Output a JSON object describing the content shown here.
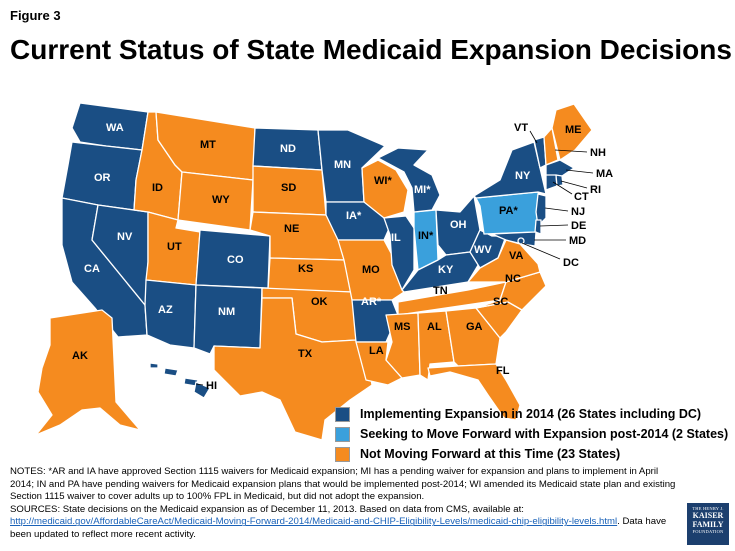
{
  "figure_label": "Figure 3",
  "title": "Current Status of State Medicaid Expansion Decisions",
  "colors": {
    "implementing": "#1a4e84",
    "seeking": "#3aa0dc",
    "not_moving": "#f58b1f"
  },
  "legend": [
    {
      "status": "implementing",
      "label": "Implementing Expansion in 2014 (26 States including DC)"
    },
    {
      "status": "seeking",
      "label": "Seeking to Move Forward with Expansion post-2014 (2 States)"
    },
    {
      "status": "not_moving",
      "label": "Not Moving Forward at this Time (23 States)"
    }
  ],
  "states": {
    "WA": {
      "label": "WA",
      "status": "implementing"
    },
    "OR": {
      "label": "OR",
      "status": "implementing"
    },
    "CA": {
      "label": "CA",
      "status": "implementing"
    },
    "NV": {
      "label": "NV",
      "status": "implementing"
    },
    "ID": {
      "label": "ID",
      "status": "not_moving"
    },
    "MT": {
      "label": "MT",
      "status": "not_moving"
    },
    "WY": {
      "label": "WY",
      "status": "not_moving"
    },
    "UT": {
      "label": "UT",
      "status": "not_moving"
    },
    "AZ": {
      "label": "AZ",
      "status": "implementing"
    },
    "CO": {
      "label": "CO",
      "status": "implementing"
    },
    "NM": {
      "label": "NM",
      "status": "implementing"
    },
    "ND": {
      "label": "ND",
      "status": "implementing"
    },
    "SD": {
      "label": "SD",
      "status": "not_moving"
    },
    "NE": {
      "label": "NE",
      "status": "not_moving"
    },
    "KS": {
      "label": "KS",
      "status": "not_moving"
    },
    "OK": {
      "label": "OK",
      "status": "not_moving"
    },
    "TX": {
      "label": "TX",
      "status": "not_moving"
    },
    "MN": {
      "label": "MN",
      "status": "implementing"
    },
    "IA": {
      "label": "IA*",
      "status": "implementing"
    },
    "MO": {
      "label": "MO",
      "status": "not_moving"
    },
    "AR": {
      "label": "AR*",
      "status": "implementing"
    },
    "LA": {
      "label": "LA",
      "status": "not_moving"
    },
    "WI": {
      "label": "WI*",
      "status": "not_moving"
    },
    "IL": {
      "label": "IL",
      "status": "implementing"
    },
    "MI": {
      "label": "MI*",
      "status": "implementing"
    },
    "IN": {
      "label": "IN*",
      "status": "seeking"
    },
    "OH": {
      "label": "OH",
      "status": "implementing"
    },
    "KY": {
      "label": "KY",
      "status": "implementing"
    },
    "TN": {
      "label": "TN",
      "status": "not_moving"
    },
    "MS": {
      "label": "MS",
      "status": "not_moving"
    },
    "AL": {
      "label": "AL",
      "status": "not_moving"
    },
    "GA": {
      "label": "GA",
      "status": "not_moving"
    },
    "FL": {
      "label": "FL",
      "status": "not_moving"
    },
    "SC": {
      "label": "SC",
      "status": "not_moving"
    },
    "NC": {
      "label": "NC",
      "status": "not_moving"
    },
    "VA": {
      "label": "VA",
      "status": "not_moving"
    },
    "WV": {
      "label": "WV",
      "status": "implementing"
    },
    "PA": {
      "label": "PA*",
      "status": "seeking"
    },
    "NY": {
      "label": "NY",
      "status": "implementing"
    },
    "VT": {
      "label": "VT",
      "status": "implementing"
    },
    "NH": {
      "label": "NH",
      "status": "not_moving"
    },
    "ME": {
      "label": "ME",
      "status": "not_moving"
    },
    "MA": {
      "label": "MA",
      "status": "implementing"
    },
    "RI": {
      "label": "RI",
      "status": "implementing"
    },
    "CT": {
      "label": "CT",
      "status": "implementing"
    },
    "NJ": {
      "label": "NJ",
      "status": "implementing"
    },
    "DE": {
      "label": "DE",
      "status": "implementing"
    },
    "MD": {
      "label": "MD",
      "status": "implementing"
    },
    "DC": {
      "label": "DC",
      "status": "implementing"
    },
    "AK": {
      "label": "AK",
      "status": "not_moving"
    },
    "HI": {
      "label": "HI",
      "status": "implementing"
    }
  },
  "notes": {
    "line1": "NOTES: *AR and IA have approved Section 1115 waivers for Medicaid expansion; MI has a pending waiver for expansion and plans to implement in April 2014; IN and PA have pending waivers for Medicaid expansion plans that would be implemented post-2014; WI amended its Medicaid state plan and existing Section 1115 waiver to cover adults up to 100% FPL in Medicaid, but did not adopt the expansion.",
    "sources_prefix": "SOURCES: State decisions on the Medicaid expansion as of December 11, 2013. Based on data from CMS, available at:",
    "sources_link": "http://medicaid.gov/AffordableCareAct/Medicaid-Moving-Forward-2014/Medicaid-and-CHIP-Eligibility-Levels/medicaid-chip-eligibility-levels.html",
    "sources_suffix": ". Data have been updated to reflect more recent activity."
  },
  "logo": {
    "small": "THE HENRY J.",
    "line1": "KAISER",
    "line2": "FAMILY",
    "small2": "FOUNDATION"
  }
}
